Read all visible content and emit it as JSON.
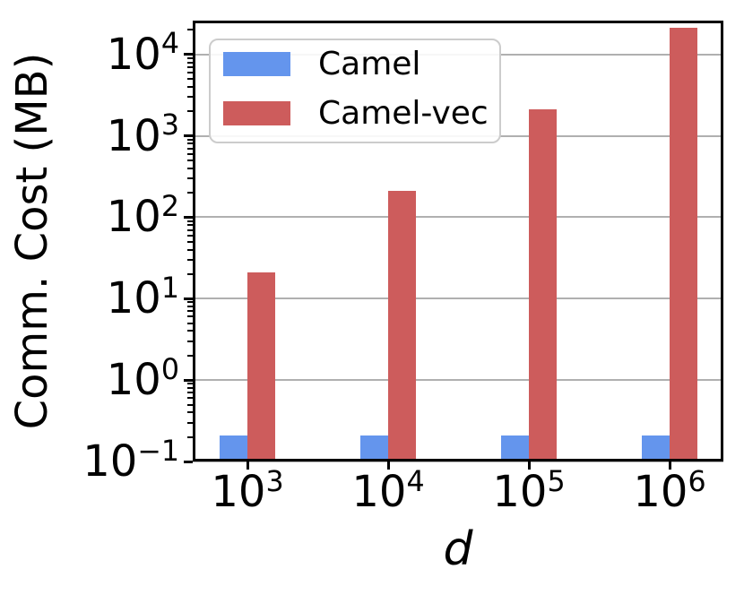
{
  "figure": {
    "background": "#ffffff",
    "spine_color": "#000000",
    "grid_color": "#b0b0b0"
  },
  "legend": {
    "items": [
      {
        "label": "Camel",
        "color": "#6495ED"
      },
      {
        "label": "Camel-vec",
        "color": "#CD5C5C"
      }
    ]
  },
  "chart_data": {
    "type": "bar",
    "title": "",
    "xlabel": "d",
    "ylabel": "Comm. Cost (MB)",
    "categories": [
      "10^3",
      "10^4",
      "10^5",
      "10^6"
    ],
    "category_display": [
      {
        "base": "10",
        "exp": "3"
      },
      {
        "base": "10",
        "exp": "4"
      },
      {
        "base": "10",
        "exp": "5"
      },
      {
        "base": "10",
        "exp": "6"
      }
    ],
    "series": [
      {
        "name": "Camel",
        "color": "#6495ED",
        "values": [
          0.21,
          0.21,
          0.21,
          0.21
        ]
      },
      {
        "name": "Camel-vec",
        "color": "#CD5C5C",
        "values": [
          21,
          210,
          2100,
          21000
        ]
      }
    ],
    "y_scale": "log",
    "y_axis": {
      "min_exp": -1,
      "max_exp": 4.415,
      "major_tick_exps": [
        -1,
        0,
        1,
        2,
        3,
        4
      ],
      "tick_display": [
        {
          "base": "10",
          "exp": "−1"
        },
        {
          "base": "10",
          "exp": "0"
        },
        {
          "base": "10",
          "exp": "1"
        },
        {
          "base": "10",
          "exp": "2"
        },
        {
          "base": "10",
          "exp": "3"
        },
        {
          "base": "10",
          "exp": "4"
        }
      ]
    },
    "grid": true,
    "legend_position": "upper left"
  }
}
